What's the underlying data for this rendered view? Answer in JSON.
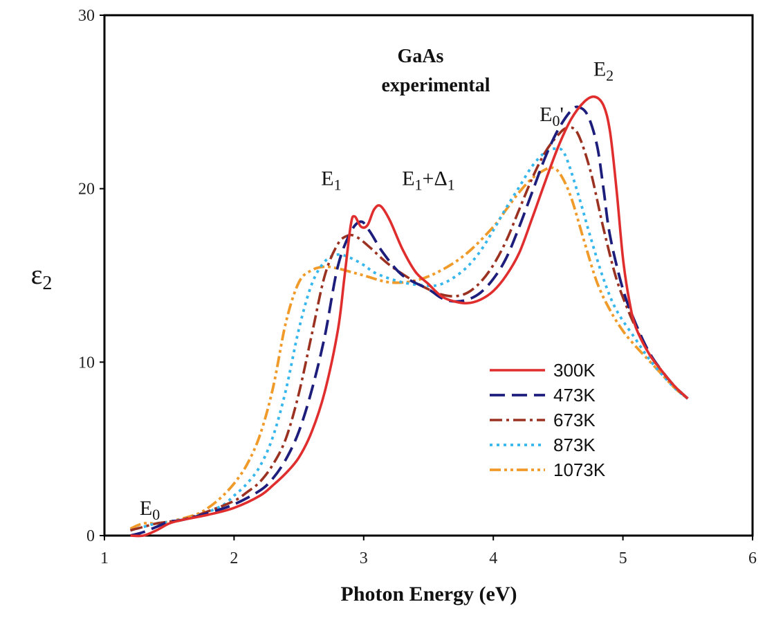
{
  "chart_data": {
    "type": "line",
    "title": "GaAs",
    "subtitle": "experimental",
    "xlabel": "Photon Energy (eV)",
    "ylabel": {
      "main": "ε",
      "sub": "2"
    },
    "xlim": [
      1,
      6
    ],
    "ylim": [
      0,
      30
    ],
    "xticks": [
      1,
      2,
      3,
      4,
      5,
      6
    ],
    "yticks": [
      0,
      10,
      20,
      30
    ],
    "grid": false,
    "legend_position": "lower-right",
    "annotations": [
      {
        "id": "e0",
        "main": "E",
        "sub": "0",
        "tail": "",
        "x": 1.35,
        "y": 1.2
      },
      {
        "id": "e1",
        "main": "E",
        "sub": "1",
        "tail": "",
        "x": 2.75,
        "y": 20.2
      },
      {
        "id": "e1d1",
        "main": "E",
        "sub": "1",
        "tail": "+Δ",
        "tail_sub": "1",
        "x": 3.5,
        "y": 20.2
      },
      {
        "id": "e0p",
        "main": "E",
        "sub": "0",
        "tail": "'",
        "x": 4.45,
        "y": 23.9
      },
      {
        "id": "e2",
        "main": "E",
        "sub": "2",
        "tail": "",
        "x": 4.85,
        "y": 26.5
      }
    ],
    "series": [
      {
        "name": "300K",
        "color": "#e02d2d",
        "dash": "",
        "width": 3.6,
        "points": [
          [
            1.2,
            0
          ],
          [
            1.3,
            0
          ],
          [
            1.4,
            0.3
          ],
          [
            1.5,
            0.7
          ],
          [
            1.6,
            0.9
          ],
          [
            1.8,
            1.2
          ],
          [
            2.0,
            1.6
          ],
          [
            2.2,
            2.3
          ],
          [
            2.3,
            2.9
          ],
          [
            2.4,
            3.6
          ],
          [
            2.5,
            4.5
          ],
          [
            2.6,
            6.0
          ],
          [
            2.7,
            8.3
          ],
          [
            2.8,
            11.8
          ],
          [
            2.85,
            14.8
          ],
          [
            2.9,
            17.9
          ],
          [
            2.93,
            18.4
          ],
          [
            2.98,
            17.8
          ],
          [
            3.03,
            17.9
          ],
          [
            3.08,
            18.8
          ],
          [
            3.13,
            19.0
          ],
          [
            3.2,
            18.2
          ],
          [
            3.3,
            16.5
          ],
          [
            3.4,
            15.2
          ],
          [
            3.5,
            14.5
          ],
          [
            3.6,
            13.8
          ],
          [
            3.7,
            13.5
          ],
          [
            3.8,
            13.4
          ],
          [
            3.9,
            13.6
          ],
          [
            4.0,
            14.1
          ],
          [
            4.1,
            15.0
          ],
          [
            4.2,
            16.3
          ],
          [
            4.3,
            18.3
          ],
          [
            4.4,
            20.4
          ],
          [
            4.5,
            22.4
          ],
          [
            4.6,
            24.0
          ],
          [
            4.7,
            25.0
          ],
          [
            4.78,
            25.3
          ],
          [
            4.85,
            24.8
          ],
          [
            4.9,
            23.3
          ],
          [
            4.95,
            20.0
          ],
          [
            5.0,
            16.0
          ],
          [
            5.05,
            13.5
          ],
          [
            5.1,
            12.0
          ],
          [
            5.2,
            10.5
          ],
          [
            5.3,
            9.5
          ],
          [
            5.4,
            8.6
          ],
          [
            5.5,
            7.9
          ]
        ]
      },
      {
        "name": "473K",
        "color": "#1d1d7c",
        "dash": "22,10",
        "width": 3.8,
        "points": [
          [
            1.2,
            0
          ],
          [
            1.3,
            0.2
          ],
          [
            1.4,
            0.5
          ],
          [
            1.5,
            0.8
          ],
          [
            1.6,
            0.9
          ],
          [
            1.8,
            1.3
          ],
          [
            2.0,
            1.8
          ],
          [
            2.2,
            2.6
          ],
          [
            2.3,
            3.3
          ],
          [
            2.4,
            4.4
          ],
          [
            2.5,
            6.0
          ],
          [
            2.6,
            8.4
          ],
          [
            2.7,
            11.5
          ],
          [
            2.8,
            15.5
          ],
          [
            2.9,
            17.5
          ],
          [
            2.98,
            18.1
          ],
          [
            3.05,
            17.5
          ],
          [
            3.15,
            16.3
          ],
          [
            3.3,
            15.0
          ],
          [
            3.5,
            14.2
          ],
          [
            3.6,
            13.7
          ],
          [
            3.7,
            13.5
          ],
          [
            3.8,
            13.6
          ],
          [
            3.9,
            14.0
          ],
          [
            4.0,
            14.8
          ],
          [
            4.1,
            16.0
          ],
          [
            4.2,
            17.8
          ],
          [
            4.3,
            19.8
          ],
          [
            4.4,
            21.8
          ],
          [
            4.5,
            23.4
          ],
          [
            4.6,
            24.5
          ],
          [
            4.66,
            24.7
          ],
          [
            4.73,
            24.2
          ],
          [
            4.8,
            22.5
          ],
          [
            4.85,
            20.0
          ],
          [
            4.9,
            17.3
          ],
          [
            5.0,
            14.2
          ],
          [
            5.1,
            12.2
          ],
          [
            5.2,
            10.6
          ],
          [
            5.3,
            9.5
          ],
          [
            5.4,
            8.6
          ],
          [
            5.5,
            7.9
          ]
        ]
      },
      {
        "name": "673K",
        "color": "#9b3120",
        "dash": "18,6,4,6",
        "width": 3.6,
        "points": [
          [
            1.2,
            0.3
          ],
          [
            1.3,
            0.5
          ],
          [
            1.4,
            0.7
          ],
          [
            1.5,
            0.8
          ],
          [
            1.6,
            0.9
          ],
          [
            1.8,
            1.4
          ],
          [
            2.0,
            2.0
          ],
          [
            2.1,
            2.5
          ],
          [
            2.2,
            3.1
          ],
          [
            2.3,
            4.1
          ],
          [
            2.4,
            5.6
          ],
          [
            2.5,
            8.2
          ],
          [
            2.6,
            11.6
          ],
          [
            2.7,
            15.0
          ],
          [
            2.8,
            16.8
          ],
          [
            2.88,
            17.3
          ],
          [
            2.95,
            17.2
          ],
          [
            3.05,
            16.6
          ],
          [
            3.2,
            15.6
          ],
          [
            3.4,
            14.6
          ],
          [
            3.5,
            14.2
          ],
          [
            3.6,
            13.9
          ],
          [
            3.7,
            13.8
          ],
          [
            3.8,
            14.0
          ],
          [
            3.9,
            14.6
          ],
          [
            4.0,
            15.6
          ],
          [
            4.1,
            17.0
          ],
          [
            4.2,
            18.8
          ],
          [
            4.3,
            20.6
          ],
          [
            4.4,
            22.1
          ],
          [
            4.5,
            23.1
          ],
          [
            4.57,
            23.5
          ],
          [
            4.65,
            23.2
          ],
          [
            4.75,
            21.0
          ],
          [
            4.85,
            17.7
          ],
          [
            4.95,
            14.8
          ],
          [
            5.05,
            12.8
          ],
          [
            5.1,
            12.0
          ],
          [
            5.2,
            10.5
          ],
          [
            5.3,
            9.5
          ],
          [
            5.4,
            8.6
          ],
          [
            5.5,
            7.9
          ]
        ]
      },
      {
        "name": "873K",
        "color": "#35b6ec",
        "dash": "4,6",
        "width": 3.8,
        "points": [
          [
            1.2,
            0.3
          ],
          [
            1.3,
            0.5
          ],
          [
            1.4,
            0.7
          ],
          [
            1.5,
            0.8
          ],
          [
            1.7,
            1.1
          ],
          [
            1.9,
            1.7
          ],
          [
            2.0,
            2.3
          ],
          [
            2.1,
            3.0
          ],
          [
            2.2,
            4.0
          ],
          [
            2.3,
            5.7
          ],
          [
            2.4,
            8.4
          ],
          [
            2.5,
            11.9
          ],
          [
            2.6,
            14.5
          ],
          [
            2.7,
            15.8
          ],
          [
            2.8,
            16.2
          ],
          [
            2.9,
            16.0
          ],
          [
            3.0,
            15.6
          ],
          [
            3.1,
            15.1
          ],
          [
            3.3,
            14.6
          ],
          [
            3.5,
            14.4
          ],
          [
            3.6,
            14.5
          ],
          [
            3.7,
            14.9
          ],
          [
            3.8,
            15.5
          ],
          [
            3.9,
            16.4
          ],
          [
            4.0,
            17.6
          ],
          [
            4.1,
            18.9
          ],
          [
            4.2,
            20.1
          ],
          [
            4.3,
            21.3
          ],
          [
            4.4,
            22.1
          ],
          [
            4.48,
            22.3
          ],
          [
            4.55,
            22.0
          ],
          [
            4.65,
            19.8
          ],
          [
            4.75,
            17.2
          ],
          [
            4.85,
            14.8
          ],
          [
            4.95,
            13.0
          ],
          [
            5.1,
            11.3
          ],
          [
            5.2,
            10.2
          ],
          [
            5.3,
            9.3
          ],
          [
            5.4,
            8.5
          ],
          [
            5.5,
            7.9
          ]
        ]
      },
      {
        "name": "1073K",
        "color": "#f09a2a",
        "dash": "16,5,4,5,4,5",
        "width": 3.8,
        "points": [
          [
            1.2,
            0.4
          ],
          [
            1.3,
            0.7
          ],
          [
            1.4,
            0.7
          ],
          [
            1.5,
            0.8
          ],
          [
            1.7,
            1.2
          ],
          [
            1.8,
            1.6
          ],
          [
            1.9,
            2.2
          ],
          [
            2.0,
            3.0
          ],
          [
            2.1,
            4.1
          ],
          [
            2.2,
            5.8
          ],
          [
            2.3,
            8.5
          ],
          [
            2.4,
            12.3
          ],
          [
            2.5,
            14.6
          ],
          [
            2.6,
            15.3
          ],
          [
            2.7,
            15.5
          ],
          [
            2.8,
            15.4
          ],
          [
            2.9,
            15.2
          ],
          [
            3.0,
            15.0
          ],
          [
            3.2,
            14.6
          ],
          [
            3.4,
            14.7
          ],
          [
            3.6,
            15.3
          ],
          [
            3.8,
            16.3
          ],
          [
            4.0,
            17.8
          ],
          [
            4.1,
            18.8
          ],
          [
            4.2,
            19.8
          ],
          [
            4.3,
            20.6
          ],
          [
            4.4,
            21.1
          ],
          [
            4.46,
            21.2
          ],
          [
            4.52,
            20.8
          ],
          [
            4.6,
            19.5
          ],
          [
            4.7,
            17.0
          ],
          [
            4.8,
            14.6
          ],
          [
            4.9,
            13.0
          ],
          [
            5.0,
            11.8
          ],
          [
            5.1,
            10.9
          ],
          [
            5.2,
            10.1
          ],
          [
            5.3,
            9.3
          ],
          [
            5.4,
            8.5
          ],
          [
            5.5,
            7.9
          ]
        ]
      }
    ]
  }
}
